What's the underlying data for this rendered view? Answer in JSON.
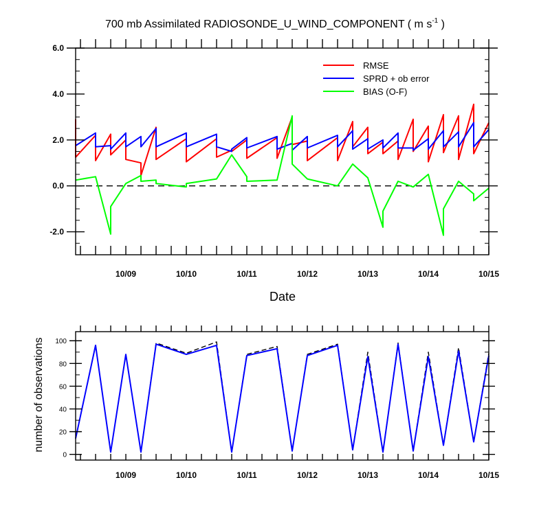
{
  "title_main": "700 mb Assimilated RADIOSONDE_U_WIND_COMPONENT ( m s",
  "title_sup": "-1",
  "title_end": " )",
  "colors": {
    "rmse": "#ff0000",
    "sprd": "#0000ff",
    "bias": "#00ff00",
    "obs_used": "#0000ff",
    "obs_poss": "#000000"
  },
  "chart_data": [
    {
      "type": "line",
      "xlabel": "Date",
      "ylabel": "",
      "xlim": [
        8.17,
        15.0
      ],
      "ylim": [
        -3.0,
        6.0
      ],
      "xticks": [
        {
          "x": 9,
          "label": "10/09"
        },
        {
          "x": 10,
          "label": "10/10"
        },
        {
          "x": 11,
          "label": "10/11"
        },
        {
          "x": 12,
          "label": "10/12"
        },
        {
          "x": 13,
          "label": "10/13"
        },
        {
          "x": 14,
          "label": "10/14"
        },
        {
          "x": 15,
          "label": "10/15"
        }
      ],
      "yticks": [
        {
          "y": 6.0,
          "label": "6.0"
        },
        {
          "y": 4.0,
          "label": "4.0"
        },
        {
          "y": 2.0,
          "label": "2.0"
        },
        {
          "y": 0.0,
          "label": "0.0"
        },
        {
          "y": -2.0,
          "label": "-2.0"
        }
      ],
      "zero_line": true,
      "legend_position": "top-right",
      "series": [
        {
          "name": "RMSE",
          "color_key": "rmse",
          "x": [
            8.17,
            8.17,
            8.5,
            8.5,
            8.75,
            8.75,
            9.0,
            9.0,
            9.25,
            9.25,
            9.5,
            9.5,
            10.0,
            10.0,
            10.5,
            10.5,
            10.75,
            10.75,
            11.0,
            11.0,
            11.5,
            11.5,
            11.75,
            11.75,
            12.0,
            12.0,
            12.5,
            12.5,
            12.75,
            12.75,
            13.0,
            13.0,
            13.25,
            13.25,
            13.5,
            13.5,
            13.75,
            13.75,
            14.0,
            14.0,
            14.25,
            14.25,
            14.5,
            14.5,
            14.75,
            14.75,
            15.0
          ],
          "y": [
            2.9,
            1.25,
            2.2,
            1.1,
            2.25,
            1.35,
            2.0,
            1.15,
            1.0,
            0.45,
            2.55,
            1.15,
            2.05,
            1.05,
            2.05,
            1.25,
            1.55,
            1.5,
            2.0,
            1.2,
            2.1,
            1.2,
            3.0,
            1.8,
            1.95,
            1.1,
            2.1,
            1.1,
            2.8,
            1.7,
            2.55,
            1.4,
            1.9,
            1.4,
            1.95,
            1.15,
            2.9,
            1.5,
            2.6,
            1.05,
            3.1,
            1.45,
            3.05,
            1.15,
            3.55,
            1.4,
            2.75
          ]
        },
        {
          "name": "SPRD + ob error",
          "color_key": "sprd",
          "x": [
            8.17,
            8.5,
            8.5,
            8.75,
            8.75,
            9.0,
            9.0,
            9.25,
            9.25,
            9.5,
            9.5,
            10.0,
            10.0,
            10.5,
            10.5,
            10.75,
            10.75,
            11.0,
            11.0,
            11.5,
            11.5,
            11.75,
            11.75,
            12.0,
            12.0,
            12.5,
            12.5,
            12.75,
            12.75,
            13.0,
            13.0,
            13.25,
            13.25,
            13.5,
            13.5,
            13.75,
            13.75,
            14.0,
            14.0,
            14.25,
            14.25,
            14.5,
            14.5,
            14.75,
            14.75,
            15.0
          ],
          "y": [
            1.75,
            2.3,
            1.7,
            1.75,
            1.6,
            2.3,
            1.7,
            2.15,
            1.7,
            2.5,
            1.7,
            2.3,
            1.7,
            2.25,
            1.7,
            1.5,
            1.6,
            2.1,
            1.65,
            2.15,
            1.6,
            1.85,
            1.55,
            2.15,
            1.65,
            2.2,
            1.7,
            2.4,
            1.6,
            2.05,
            1.6,
            2.0,
            1.65,
            2.3,
            1.65,
            1.65,
            1.55,
            2.05,
            1.6,
            2.4,
            1.7,
            2.35,
            1.7,
            2.75,
            1.7,
            2.45
          ]
        },
        {
          "name": "BIAS (O-F)",
          "color_key": "bias",
          "x": [
            8.17,
            8.5,
            8.75,
            8.75,
            9.0,
            9.25,
            9.25,
            9.5,
            9.5,
            10.0,
            10.0,
            10.5,
            10.75,
            11.0,
            11.0,
            11.5,
            11.75,
            11.75,
            12.0,
            12.5,
            12.75,
            13.0,
            13.25,
            13.25,
            13.5,
            13.75,
            14.0,
            14.25,
            14.25,
            14.5,
            14.75,
            14.75,
            15.0
          ],
          "y": [
            0.25,
            0.4,
            -2.1,
            -0.9,
            0.1,
            0.45,
            0.2,
            0.25,
            0.1,
            -0.05,
            0.1,
            0.3,
            1.35,
            0.4,
            0.2,
            0.25,
            3.05,
            0.95,
            0.3,
            0.0,
            0.95,
            0.35,
            -1.8,
            -1.1,
            0.2,
            -0.05,
            0.5,
            -2.15,
            -1.0,
            0.2,
            -0.35,
            -0.65,
            -0.1
          ]
        }
      ]
    },
    {
      "type": "line",
      "xlabel": "",
      "ylabel": "number of observations",
      "xlim": [
        8.17,
        15.0
      ],
      "ylim": [
        -5,
        108
      ],
      "xticks": [
        {
          "x": 9,
          "label": "10/09"
        },
        {
          "x": 10,
          "label": "10/10"
        },
        {
          "x": 11,
          "label": "10/11"
        },
        {
          "x": 12,
          "label": "10/12"
        },
        {
          "x": 13,
          "label": "10/13"
        },
        {
          "x": 14,
          "label": "10/14"
        },
        {
          "x": 15,
          "label": "10/15"
        }
      ],
      "yticks": [
        {
          "y": 0,
          "label": "0"
        },
        {
          "y": 20,
          "label": "20"
        },
        {
          "y": 40,
          "label": "40"
        },
        {
          "y": 60,
          "label": "60"
        },
        {
          "y": 80,
          "label": "80"
        },
        {
          "y": 100,
          "label": "100"
        }
      ],
      "series": [
        {
          "color_key": "obs_poss",
          "dashed": true,
          "x": [
            8.17,
            8.5,
            8.75,
            9.0,
            9.25,
            9.5,
            10.0,
            10.5,
            10.75,
            11.0,
            11.5,
            11.75,
            12.0,
            12.5,
            12.75,
            13.0,
            13.25,
            13.5,
            13.75,
            14.0,
            14.25,
            14.5,
            14.75,
            15.0
          ],
          "y": [
            14,
            96,
            2,
            88,
            2,
            98,
            89,
            99,
            2,
            88,
            95,
            3,
            88,
            97,
            4,
            90,
            2,
            98,
            3,
            90,
            8,
            94,
            11,
            89
          ]
        },
        {
          "color_key": "obs_used",
          "dashed": false,
          "x": [
            8.17,
            8.5,
            8.75,
            9.0,
            9.25,
            9.5,
            10.0,
            10.5,
            10.75,
            11.0,
            11.5,
            11.75,
            12.0,
            12.5,
            12.75,
            13.0,
            13.25,
            13.5,
            13.75,
            14.0,
            14.25,
            14.5,
            14.75,
            15.0
          ],
          "y": [
            14,
            96,
            2,
            88,
            2,
            97,
            88,
            96,
            2,
            87,
            93,
            3,
            87,
            96,
            4,
            86,
            2,
            97,
            3,
            86,
            8,
            91,
            11,
            87
          ]
        }
      ]
    }
  ]
}
